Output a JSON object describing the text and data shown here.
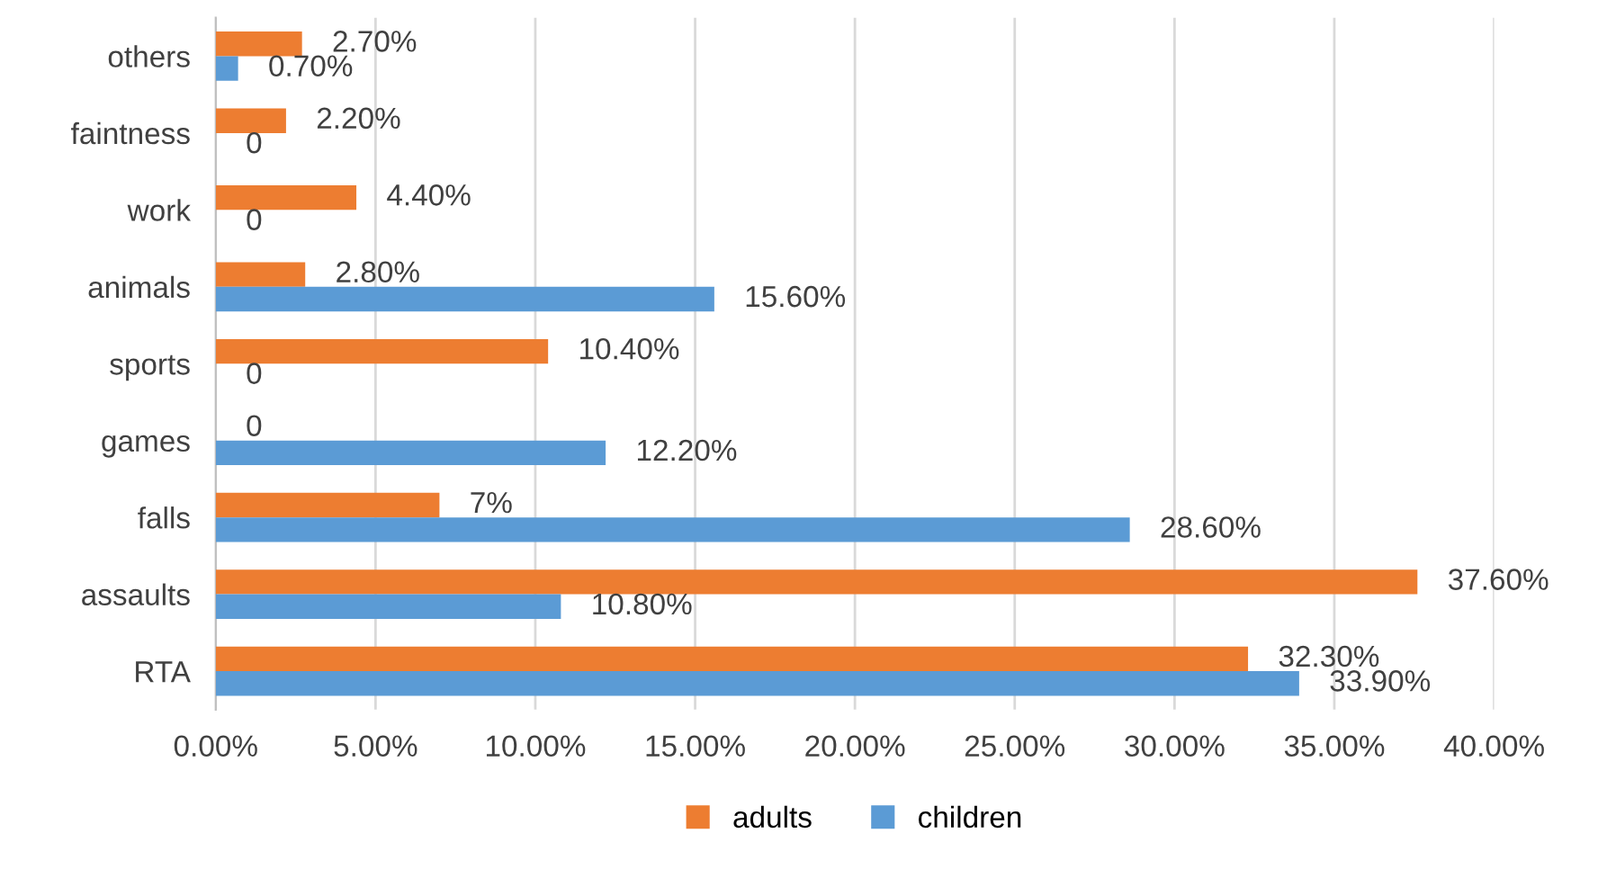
{
  "chart_data": {
    "type": "bar",
    "orientation": "horizontal",
    "categories": [
      "others",
      "faintness",
      "work",
      "animals",
      "sports",
      "games",
      "falls",
      "assaults",
      "RTA"
    ],
    "series": [
      {
        "name": "adults",
        "color": "#ed7d31",
        "values": [
          2.7,
          2.2,
          4.4,
          2.8,
          10.4,
          0,
          7,
          37.6,
          32.3
        ],
        "value_labels": [
          "2.70%",
          "2.20%",
          "4.40%",
          "2.80%",
          "10.40%",
          "0",
          "7%",
          "37.60%",
          "32.30%"
        ]
      },
      {
        "name": "children",
        "color": "#5b9bd5",
        "values": [
          0.7,
          0,
          0,
          15.6,
          0,
          12.2,
          28.6,
          10.8,
          33.9
        ],
        "value_labels": [
          "0.70%",
          "0",
          "0",
          "15.60%",
          "0",
          "12.20%",
          "28.60%",
          "10.80%",
          "33.90%"
        ]
      }
    ],
    "xlim": [
      0,
      40
    ],
    "xticks": [
      {
        "value": 0,
        "label": "0.00%"
      },
      {
        "value": 5,
        "label": "5.00%"
      },
      {
        "value": 10,
        "label": "10.00%"
      },
      {
        "value": 15,
        "label": "15.00%"
      },
      {
        "value": 20,
        "label": "20.00%"
      },
      {
        "value": 25,
        "label": "25.00%"
      },
      {
        "value": 30,
        "label": "30.00%"
      },
      {
        "value": 35,
        "label": "35.00%"
      },
      {
        "value": 40,
        "label": "40.00%"
      }
    ],
    "grid": "x",
    "legend": "bottom"
  }
}
